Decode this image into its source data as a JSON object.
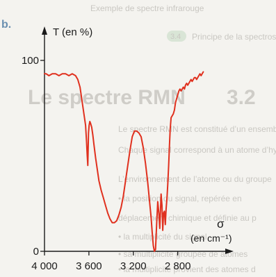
{
  "page": {
    "panel_letter": "b.",
    "background_text": {
      "lines": [
        "Exemple de spectre infrarouge",
        "Principe de la spectroscopie IR",
        "3.2 Le spectre RMN",
        "Le spectre RMN est constitué d’un ensemble",
        "Chaque signal correspond à un atome d’hydro",
        "L’environnement de l’atome ou du groupe",
        "• la position du signal, repérée en",
        "déplacement chimique et définie au p",
        "• la multiplicité du signal",
        "• sa multiplicité groupée de atomes",
        "• la multiplicité provient des atomes d"
      ],
      "section_badge": "3.4",
      "heading_number": "3.2",
      "heading_text": "Le spectre RMN"
    }
  },
  "chart_data": {
    "type": "line",
    "ylabel": "T (en %)",
    "xlabel_symbol": "σ",
    "xlabel_unit": "(en cm⁻¹)",
    "y_tick_labels": [
      "100",
      "0"
    ],
    "y_ticks": [
      100,
      0
    ],
    "x_tick_labels": [
      "4 000",
      "3 600",
      "3 200",
      "2 800"
    ],
    "x_ticks": [
      4000,
      3600,
      3200,
      2800
    ],
    "xlim": [
      4000,
      2560
    ],
    "ylim": [
      0,
      100
    ],
    "series_color": "#e0301e",
    "series": [
      {
        "x": [
          4000,
          3985,
          3960,
          3930,
          3900,
          3870,
          3840,
          3810,
          3780,
          3750,
          3720,
          3700,
          3680,
          3665,
          3650,
          3640,
          3630,
          3622,
          3615,
          3610,
          3604,
          3598,
          3592,
          3585,
          3575,
          3565,
          3555,
          3540,
          3525,
          3510,
          3490,
          3470,
          3450,
          3430,
          3410,
          3390,
          3370,
          3350,
          3330,
          3310,
          3290,
          3270,
          3250,
          3230,
          3210,
          3190,
          3170,
          3150,
          3130,
          3110,
          3090,
          3070,
          3055,
          3040,
          3030,
          3020,
          3010,
          3000,
          2990,
          2980,
          2970,
          2962,
          2955,
          2950,
          2942,
          2935,
          2928,
          2920,
          2912,
          2905,
          2897,
          2890,
          2882,
          2875,
          2868,
          2860,
          2850,
          2840,
          2830,
          2820,
          2810,
          2800,
          2790,
          2780,
          2770,
          2760,
          2750,
          2740,
          2730,
          2720,
          2710,
          2700,
          2690,
          2680,
          2670,
          2660,
          2650,
          2640,
          2630,
          2620,
          2610,
          2600,
          2590,
          2580,
          2570
        ],
        "y": [
          93,
          93,
          92,
          93,
          93,
          92,
          93,
          93,
          92,
          93,
          92,
          90,
          86,
          80,
          74,
          70,
          66,
          58,
          50,
          45,
          62,
          66,
          68,
          67,
          65,
          61,
          56,
          49,
          43,
          37,
          32,
          28,
          24,
          20,
          17,
          15,
          15,
          16,
          19,
          23,
          29,
          37,
          45,
          53,
          60,
          63,
          63,
          62,
          60,
          54,
          46,
          36,
          27,
          18,
          10,
          3,
          0,
          1,
          14,
          26,
          20,
          12,
          22,
          30,
          24,
          11,
          20,
          21,
          14,
          22,
          28,
          35,
          45,
          55,
          64,
          70,
          71,
          72,
          74,
          78,
          80,
          82,
          84,
          85,
          84,
          85,
          86,
          85,
          87,
          88,
          87,
          88,
          89,
          90,
          89,
          90,
          91,
          91,
          90,
          91,
          92,
          93,
          92,
          93,
          94
        ]
      }
    ]
  }
}
